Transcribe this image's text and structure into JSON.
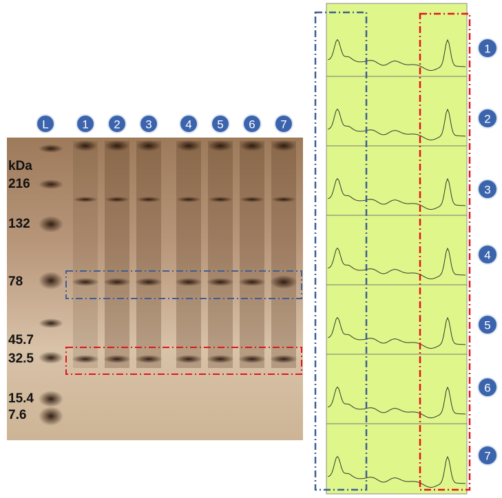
{
  "gel": {
    "lane_labels": [
      "L",
      "1",
      "2",
      "3",
      "4",
      "5",
      "6",
      "7"
    ],
    "mw_labels": [
      "kDa",
      "216",
      "132",
      "78",
      "45.7",
      "32.5",
      "15.4",
      "7.6"
    ]
  },
  "profiles": {
    "row_labels": [
      "1",
      "2",
      "3",
      "4",
      "5",
      "6",
      "7"
    ]
  }
}
